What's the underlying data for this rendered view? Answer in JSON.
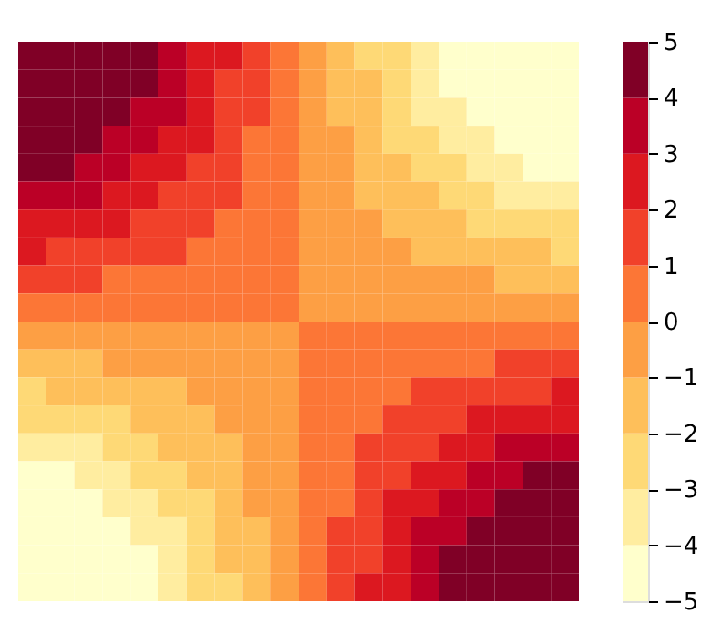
{
  "chart_data": {
    "type": "heatmap",
    "categories": [
      null,
      null,
      null,
      null,
      null,
      null,
      null,
      null,
      null,
      null,
      null,
      null,
      null,
      null,
      null,
      null,
      null,
      null,
      null,
      null
    ],
    "y_categories": [
      null,
      null,
      null,
      null,
      null,
      null,
      null,
      null,
      null,
      null,
      null,
      null,
      null,
      null,
      null,
      null,
      null,
      null,
      null,
      null
    ],
    "cells": [
      [
        4.5,
        4.5,
        4.5,
        4.5,
        4.5,
        3.5,
        2.5,
        2.5,
        1.5,
        0.5,
        -0.5,
        -1.5,
        -2.5,
        -2.5,
        -3.5,
        -4.5,
        -4.5,
        -4.5,
        -4.5,
        -4.5
      ],
      [
        4.5,
        4.5,
        4.5,
        4.5,
        4.5,
        3.5,
        2.5,
        1.5,
        1.5,
        0.5,
        -0.5,
        -1.5,
        -1.5,
        -2.5,
        -3.5,
        -4.5,
        -4.5,
        -4.5,
        -4.5,
        -4.5
      ],
      [
        4.5,
        4.5,
        4.5,
        4.5,
        3.5,
        3.5,
        2.5,
        1.5,
        1.5,
        0.5,
        -0.5,
        -1.5,
        -1.5,
        -2.5,
        -3.5,
        -3.5,
        -4.5,
        -4.5,
        -4.5,
        -4.5
      ],
      [
        4.5,
        4.5,
        4.5,
        3.5,
        3.5,
        2.5,
        2.5,
        1.5,
        0.5,
        0.5,
        -0.5,
        -0.5,
        -1.5,
        -2.5,
        -2.5,
        -3.5,
        -3.5,
        -4.5,
        -4.5,
        -4.5
      ],
      [
        4.5,
        4.5,
        3.5,
        3.5,
        2.5,
        2.5,
        1.5,
        1.5,
        0.5,
        0.5,
        -0.5,
        -0.5,
        -1.5,
        -1.5,
        -2.5,
        -2.5,
        -3.5,
        -3.5,
        -4.5,
        -4.5
      ],
      [
        3.5,
        3.5,
        3.5,
        2.5,
        2.5,
        1.5,
        1.5,
        1.5,
        0.5,
        0.5,
        -0.5,
        -0.5,
        -1.5,
        -1.5,
        -1.5,
        -2.5,
        -2.5,
        -3.5,
        -3.5,
        -3.5
      ],
      [
        2.5,
        2.5,
        2.5,
        2.5,
        1.5,
        1.5,
        1.5,
        0.5,
        0.5,
        0.5,
        -0.5,
        -0.5,
        -0.5,
        -1.5,
        -1.5,
        -1.5,
        -2.5,
        -2.5,
        -2.5,
        -2.5
      ],
      [
        2.5,
        1.5,
        1.5,
        1.5,
        1.5,
        1.5,
        0.5,
        0.5,
        0.5,
        0.5,
        -0.5,
        -0.5,
        -0.5,
        -0.5,
        -1.5,
        -1.5,
        -1.5,
        -1.5,
        -1.5,
        -2.5
      ],
      [
        1.5,
        1.5,
        1.5,
        0.5,
        0.5,
        0.5,
        0.5,
        0.5,
        0.5,
        0.5,
        -0.5,
        -0.5,
        -0.5,
        -0.5,
        -0.5,
        -0.5,
        -0.5,
        -1.5,
        -1.5,
        -1.5
      ],
      [
        0.5,
        0.5,
        0.5,
        0.5,
        0.5,
        0.5,
        0.5,
        0.5,
        0.5,
        0.5,
        -0.5,
        -0.5,
        -0.5,
        -0.5,
        -0.5,
        -0.5,
        -0.5,
        -0.5,
        -0.5,
        -0.5
      ],
      [
        -0.5,
        -0.5,
        -0.5,
        -0.5,
        -0.5,
        -0.5,
        -0.5,
        -0.5,
        -0.5,
        -0.5,
        0.5,
        0.5,
        0.5,
        0.5,
        0.5,
        0.5,
        0.5,
        0.5,
        0.5,
        0.5
      ],
      [
        -1.5,
        -1.5,
        -1.5,
        -0.5,
        -0.5,
        -0.5,
        -0.5,
        -0.5,
        -0.5,
        -0.5,
        0.5,
        0.5,
        0.5,
        0.5,
        0.5,
        0.5,
        0.5,
        1.5,
        1.5,
        1.5
      ],
      [
        -2.5,
        -1.5,
        -1.5,
        -1.5,
        -1.5,
        -1.5,
        -0.5,
        -0.5,
        -0.5,
        -0.5,
        0.5,
        0.5,
        0.5,
        0.5,
        1.5,
        1.5,
        1.5,
        1.5,
        1.5,
        2.5
      ],
      [
        -2.5,
        -2.5,
        -2.5,
        -2.5,
        -1.5,
        -1.5,
        -1.5,
        -0.5,
        -0.5,
        -0.5,
        0.5,
        0.5,
        0.5,
        1.5,
        1.5,
        1.5,
        2.5,
        2.5,
        2.5,
        2.5
      ],
      [
        -3.5,
        -3.5,
        -3.5,
        -2.5,
        -2.5,
        -1.5,
        -1.5,
        -1.5,
        -0.5,
        -0.5,
        0.5,
        0.5,
        1.5,
        1.5,
        1.5,
        2.5,
        2.5,
        3.5,
        3.5,
        3.5
      ],
      [
        -4.5,
        -4.5,
        -3.5,
        -3.5,
        -2.5,
        -2.5,
        -1.5,
        -1.5,
        -0.5,
        -0.5,
        0.5,
        0.5,
        1.5,
        1.5,
        2.5,
        2.5,
        3.5,
        3.5,
        4.5,
        4.5
      ],
      [
        -4.5,
        -4.5,
        -4.5,
        -3.5,
        -3.5,
        -2.5,
        -2.5,
        -1.5,
        -0.5,
        -0.5,
        0.5,
        0.5,
        1.5,
        2.5,
        2.5,
        3.5,
        3.5,
        4.5,
        4.5,
        4.5
      ],
      [
        -4.5,
        -4.5,
        -4.5,
        -4.5,
        -3.5,
        -3.5,
        -2.5,
        -1.5,
        -1.5,
        -0.5,
        0.5,
        1.5,
        1.5,
        2.5,
        3.5,
        3.5,
        4.5,
        4.5,
        4.5,
        4.5
      ],
      [
        -4.5,
        -4.5,
        -4.5,
        -4.5,
        -4.5,
        -3.5,
        -2.5,
        -1.5,
        -1.5,
        -0.5,
        0.5,
        1.5,
        1.5,
        2.5,
        3.5,
        4.5,
        4.5,
        4.5,
        4.5,
        4.5
      ],
      [
        -4.5,
        -4.5,
        -4.5,
        -4.5,
        -4.5,
        -3.5,
        -2.5,
        -2.5,
        -1.5,
        -0.5,
        0.5,
        1.5,
        2.5,
        2.5,
        3.5,
        4.5,
        4.5,
        4.5,
        4.5,
        4.5
      ]
    ],
    "colors": [
      "#ffffcc",
      "#ffeda0",
      "#fed976",
      "#febf5a",
      "#fd9f44",
      "#fc7636",
      "#f1412a",
      "#dc1820",
      "#bb0026",
      "#800026"
    ],
    "clim": [
      -5,
      5
    ],
    "cticks": [
      -5,
      -4,
      -3,
      -2,
      -1,
      0,
      1,
      2,
      3,
      4,
      5
    ],
    "tick_labels": false
  }
}
